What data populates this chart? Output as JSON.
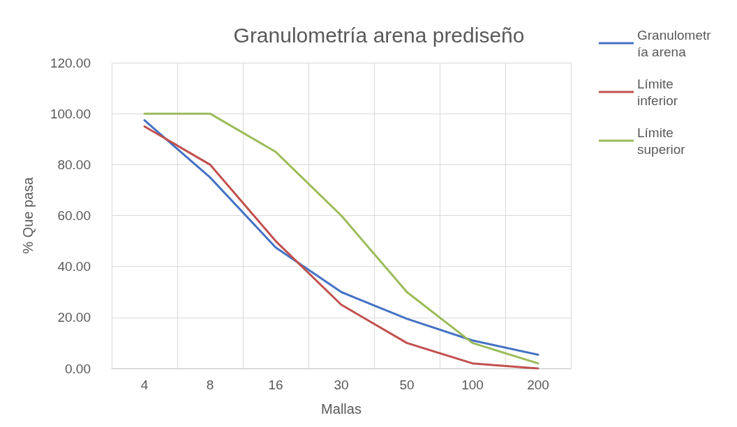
{
  "chart_data": {
    "type": "line",
    "title": "Granulometría arena prediseño",
    "xlabel": "Mallas",
    "ylabel": "% Que pasa",
    "categories": [
      "4",
      "8",
      "16",
      "30",
      "50",
      "100",
      "200"
    ],
    "series": [
      {
        "name": "Granulometría arena",
        "color": "#4472c4",
        "values": [
          97.4,
          75,
          47.5,
          30,
          19.5,
          11,
          5.4
        ]
      },
      {
        "name": "Límite inferior",
        "color": "#c0504d",
        "values": [
          95,
          80,
          50,
          25,
          10,
          2,
          0
        ]
      },
      {
        "name": "Límite superior",
        "color": "#9bbb59",
        "values": [
          100,
          100,
          85,
          60,
          30,
          10,
          2
        ]
      }
    ],
    "ylim": [
      0,
      120
    ],
    "yticks": [
      {
        "value": 0,
        "label": "0.00"
      },
      {
        "value": 20,
        "label": "20.00"
      },
      {
        "value": 40,
        "label": "40.00"
      },
      {
        "value": 60,
        "label": "60.00"
      },
      {
        "value": 80,
        "label": "80.00"
      },
      {
        "value": 100,
        "label": "100.00"
      },
      {
        "value": 120,
        "label": "120.00"
      }
    ],
    "grid": true,
    "legend": "right",
    "marker": "none",
    "line_style": "solid"
  }
}
